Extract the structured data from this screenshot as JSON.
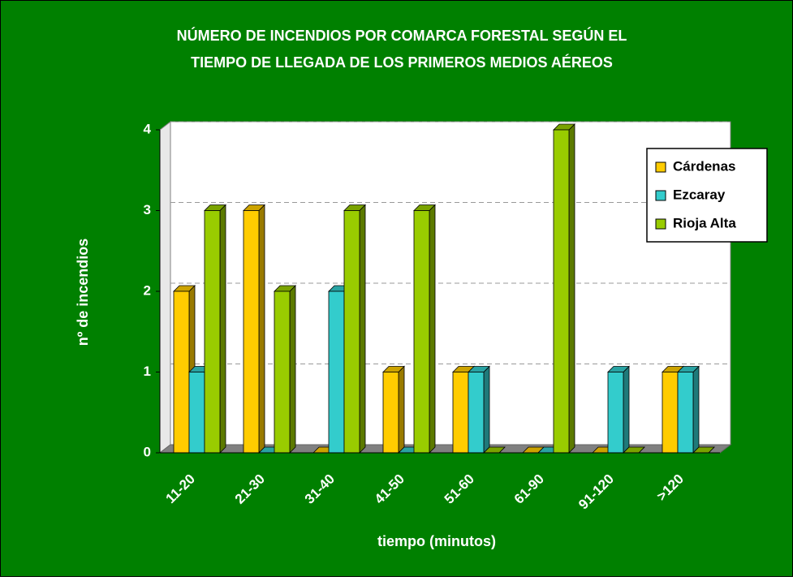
{
  "chart_data": {
    "type": "bar3d",
    "title": [
      "NÚMERO DE INCENDIOS POR COMARCA FORESTAL SEGÚN EL",
      "TIEMPO DE LLEGADA DE LOS PRIMEROS MEDIOS AÉREOS"
    ],
    "x_label": "tiempo (minutos)",
    "y_label": "nº de incendios",
    "categories": [
      "11-20",
      "21-30",
      "31-40",
      "41-50",
      "51-60",
      "61-90",
      "91-120",
      ">120"
    ],
    "series": [
      {
        "name": "Cárdenas",
        "color": "#FFCC00",
        "values": [
          2,
          3,
          0,
          1,
          1,
          0,
          0,
          1
        ]
      },
      {
        "name": "Ezcaray",
        "color": "#33CCCC",
        "values": [
          1,
          0,
          2,
          0,
          1,
          0,
          1,
          1
        ]
      },
      {
        "name": "Rioja Alta",
        "color": "#99CC00",
        "values": [
          3,
          2,
          3,
          3,
          0,
          4,
          0,
          0
        ]
      }
    ],
    "ylim": [
      0,
      4
    ],
    "yticks": [
      0,
      1,
      2,
      3,
      4
    ],
    "grid": true,
    "legend": "right"
  }
}
